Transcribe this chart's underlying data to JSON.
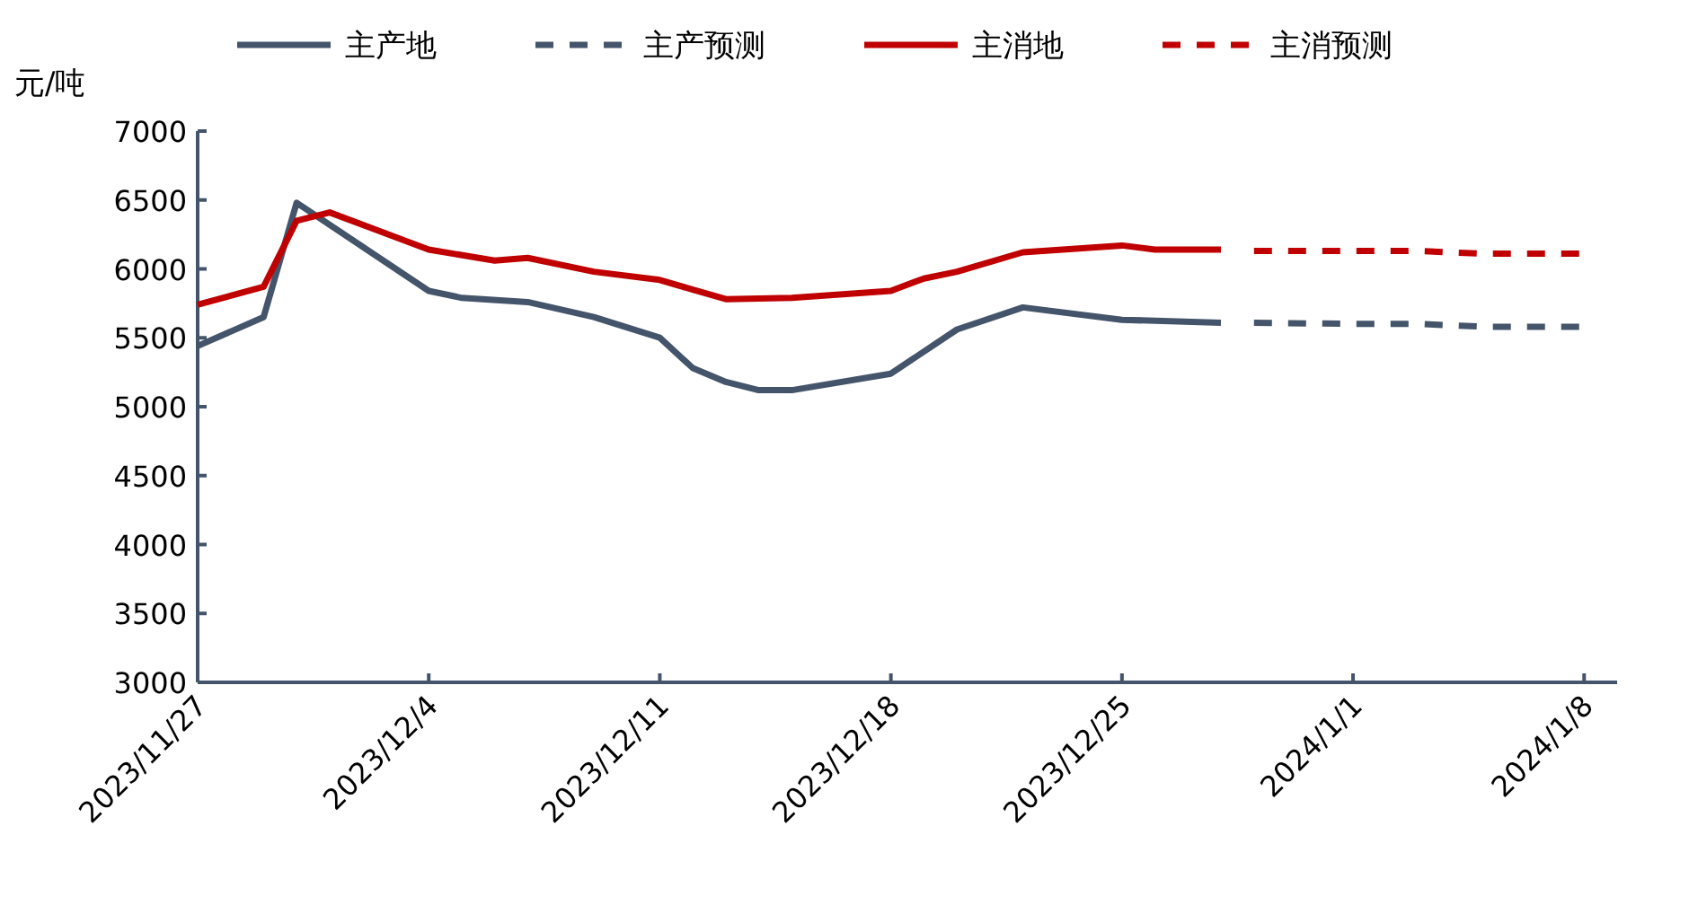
{
  "chart_data": {
    "type": "line",
    "ylabel": "元/吨",
    "legend": "top",
    "grid": false,
    "marker": "none",
    "xlim": [
      "2023-11-27",
      "2024-01-09"
    ],
    "xticks": [
      {
        "value": "2023-11-27",
        "label": "2023/11/27"
      },
      {
        "value": "2023-12-04",
        "label": "2023/12/4"
      },
      {
        "value": "2023-12-11",
        "label": "2023/12/11"
      },
      {
        "value": "2023-12-18",
        "label": "2023/12/18"
      },
      {
        "value": "2023-12-25",
        "label": "2023/12/25"
      },
      {
        "value": "2024-01-01",
        "label": "2024/1/1"
      },
      {
        "value": "2024-01-08",
        "label": "2024/1/8"
      }
    ],
    "ylim": [
      3000,
      7000
    ],
    "yticks": [
      3000,
      3500,
      4000,
      4500,
      5000,
      5500,
      6000,
      6500,
      7000
    ],
    "series": [
      {
        "name": "主产地",
        "color": "#44546a",
        "line_style": "solid",
        "x": [
          "2023-11-27",
          "2023-11-29",
          "2023-11-30",
          "2023-12-04",
          "2023-12-05",
          "2023-12-07",
          "2023-12-09",
          "2023-12-11",
          "2023-12-12",
          "2023-12-13",
          "2023-12-14",
          "2023-12-15",
          "2023-12-18",
          "2023-12-20",
          "2023-12-22",
          "2023-12-25",
          "2023-12-28"
        ],
        "values": [
          5440,
          5650,
          6480,
          5840,
          5790,
          5760,
          5650,
          5500,
          5280,
          5180,
          5120,
          5120,
          5240,
          5560,
          5720,
          5630,
          5610
        ]
      },
      {
        "name": "主产预测",
        "color": "#44546a",
        "line_style": "dashed",
        "x": [
          "2023-12-29",
          "2024-01-01",
          "2024-01-03",
          "2024-01-05",
          "2024-01-08"
        ],
        "values": [
          5610,
          5600,
          5600,
          5580,
          5580
        ]
      },
      {
        "name": "主消地",
        "color": "#c00000",
        "line_style": "solid",
        "x": [
          "2023-11-27",
          "2023-11-29",
          "2023-11-30",
          "2023-12-01",
          "2023-12-04",
          "2023-12-06",
          "2023-12-07",
          "2023-12-09",
          "2023-12-11",
          "2023-12-12",
          "2023-12-13",
          "2023-12-15",
          "2023-12-18",
          "2023-12-19",
          "2023-12-20",
          "2023-12-22",
          "2023-12-25",
          "2023-12-26",
          "2023-12-28"
        ],
        "values": [
          5740,
          5870,
          6350,
          6410,
          6140,
          6060,
          6080,
          5980,
          5920,
          5850,
          5780,
          5790,
          5840,
          5930,
          5980,
          6120,
          6170,
          6140,
          6140
        ]
      },
      {
        "name": "主消预测",
        "color": "#c00000",
        "line_style": "dashed",
        "x": [
          "2023-12-29",
          "2024-01-01",
          "2024-01-03",
          "2024-01-05",
          "2024-01-08"
        ],
        "values": [
          6130,
          6130,
          6130,
          6110,
          6110
        ]
      }
    ]
  }
}
